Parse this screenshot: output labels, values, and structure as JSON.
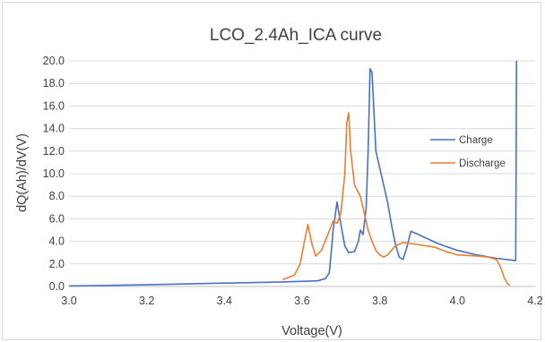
{
  "chart_data": {
    "type": "line",
    "title": "LCO_2.4Ah_ICA curve",
    "xlabel": "Voltage(V)",
    "ylabel": "dQ(Ah)/dV(V)",
    "xlim": [
      3.0,
      4.2
    ],
    "ylim": [
      0.0,
      20.0
    ],
    "x_ticks": [
      "3.0",
      "3.2",
      "3.4",
      "3.6",
      "3.8",
      "4.0",
      "4.2"
    ],
    "y_ticks": [
      "0.0",
      "2.0",
      "4.0",
      "6.0",
      "8.0",
      "10.0",
      "12.0",
      "14.0",
      "16.0",
      "18.0",
      "20.0"
    ],
    "grid": "horizontal",
    "legend_position": "right",
    "series": [
      {
        "name": "Charge",
        "color": "#4472c4",
        "points": [
          [
            3.0,
            0.05
          ],
          [
            3.2,
            0.15
          ],
          [
            3.4,
            0.3
          ],
          [
            3.55,
            0.4
          ],
          [
            3.64,
            0.5
          ],
          [
            3.66,
            0.7
          ],
          [
            3.67,
            1.2
          ],
          [
            3.675,
            3.0
          ],
          [
            3.68,
            5.0
          ],
          [
            3.69,
            7.5
          ],
          [
            3.7,
            5.5
          ],
          [
            3.71,
            3.6
          ],
          [
            3.72,
            3.0
          ],
          [
            3.735,
            3.1
          ],
          [
            3.745,
            4.0
          ],
          [
            3.75,
            5.0
          ],
          [
            3.757,
            4.6
          ],
          [
            3.765,
            7.0
          ],
          [
            3.77,
            12.0
          ],
          [
            3.775,
            19.3
          ],
          [
            3.78,
            19.0
          ],
          [
            3.79,
            12.0
          ],
          [
            3.8,
            10.5
          ],
          [
            3.81,
            9.0
          ],
          [
            3.82,
            7.5
          ],
          [
            3.83,
            5.5
          ],
          [
            3.84,
            3.8
          ],
          [
            3.85,
            2.6
          ],
          [
            3.86,
            2.4
          ],
          [
            3.87,
            3.5
          ],
          [
            3.88,
            4.9
          ],
          [
            3.9,
            4.6
          ],
          [
            3.95,
            3.8
          ],
          [
            4.0,
            3.2
          ],
          [
            4.05,
            2.8
          ],
          [
            4.1,
            2.5
          ],
          [
            4.15,
            2.3
          ],
          [
            4.152,
            20.0
          ]
        ]
      },
      {
        "name": "Discharge",
        "color": "#ed7d31",
        "points": [
          [
            3.55,
            0.6
          ],
          [
            3.58,
            1.0
          ],
          [
            3.595,
            2.0
          ],
          [
            3.605,
            3.8
          ],
          [
            3.615,
            5.5
          ],
          [
            3.625,
            3.8
          ],
          [
            3.635,
            2.7
          ],
          [
            3.65,
            3.2
          ],
          [
            3.665,
            4.5
          ],
          [
            3.68,
            5.8
          ],
          [
            3.69,
            5.6
          ],
          [
            3.7,
            6.5
          ],
          [
            3.71,
            10.0
          ],
          [
            3.715,
            14.5
          ],
          [
            3.72,
            15.4
          ],
          [
            3.725,
            12.0
          ],
          [
            3.735,
            9.0
          ],
          [
            3.75,
            8.0
          ],
          [
            3.76,
            6.5
          ],
          [
            3.77,
            5.0
          ],
          [
            3.78,
            4.0
          ],
          [
            3.79,
            3.2
          ],
          [
            3.8,
            2.8
          ],
          [
            3.81,
            2.6
          ],
          [
            3.82,
            2.8
          ],
          [
            3.84,
            3.6
          ],
          [
            3.86,
            3.9
          ],
          [
            3.9,
            3.7
          ],
          [
            3.94,
            3.5
          ],
          [
            3.97,
            3.1
          ],
          [
            4.0,
            2.8
          ],
          [
            4.05,
            2.7
          ],
          [
            4.08,
            2.6
          ],
          [
            4.1,
            2.4
          ],
          [
            4.11,
            1.8
          ],
          [
            4.12,
            0.8
          ],
          [
            4.13,
            0.2
          ],
          [
            4.135,
            0.1
          ]
        ]
      }
    ]
  }
}
